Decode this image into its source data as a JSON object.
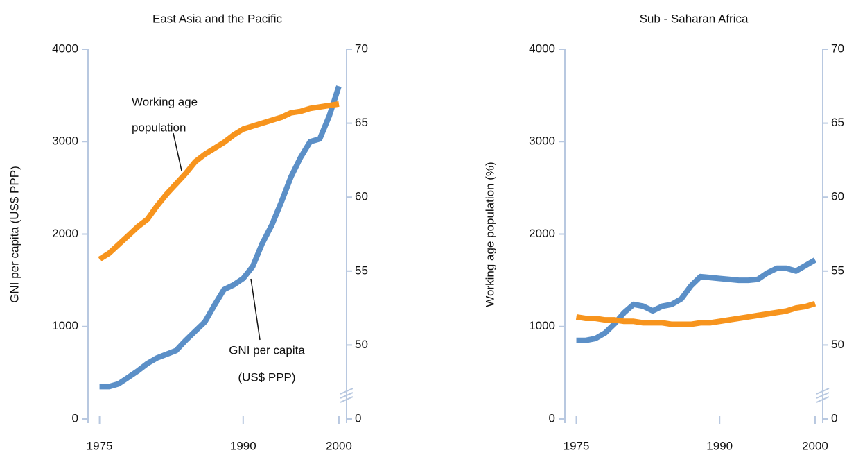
{
  "chart_data": [
    {
      "type": "line",
      "title": "East Asia and the Pacific",
      "y_label": "GNI per capita (US$ PPP)",
      "x": [
        1975,
        1976,
        1977,
        1978,
        1979,
        1980,
        1981,
        1982,
        1983,
        1984,
        1985,
        1986,
        1987,
        1988,
        1989,
        1990,
        1991,
        1992,
        1993,
        1994,
        1995,
        1996,
        1997,
        1998,
        1999,
        2000
      ],
      "xlim": [
        1973.8,
        2000.8
      ],
      "xticks": [
        1975,
        1990,
        2000
      ],
      "ylim": [
        0,
        4000
      ],
      "yticks": [
        0,
        1000,
        2000,
        3000,
        4000
      ],
      "y2lim": [
        45,
        70
      ],
      "y2ticks": [
        0,
        50,
        55,
        60,
        65,
        70
      ],
      "y2_broken": true,
      "series": [
        {
          "color": "#5b8fc7",
          "values": [
            350,
            350,
            380,
            450,
            520,
            600,
            660,
            700,
            740,
            850,
            950,
            1050,
            1230,
            1400,
            1450,
            1520,
            1650,
            1900,
            2100,
            2350,
            2620,
            2830,
            3000,
            3030,
            3280,
            3600
          ]
        },
        {
          "color": "#f7941d",
          "axis": "y2",
          "values": [
            55.8,
            56.2,
            56.8,
            57.4,
            58,
            58.5,
            59.4,
            60.2,
            60.9,
            61.6,
            62.4,
            62.9,
            63.3,
            63.7,
            64.2,
            64.6,
            64.8,
            65,
            65.2,
            65.4,
            65.7,
            65.8,
            66,
            66.1,
            66.2,
            66.3
          ]
        }
      ],
      "annotations": [
        [
          "Working age",
          "population"
        ],
        [
          "GNI per capita",
          "(US$ PPP)"
        ]
      ]
    },
    {
      "type": "line",
      "title": "Sub - Saharan Africa",
      "y_label": "Working age population (%)",
      "x": [
        1975,
        1976,
        1977,
        1978,
        1979,
        1980,
        1981,
        1982,
        1983,
        1984,
        1985,
        1986,
        1987,
        1988,
        1989,
        1990,
        1991,
        1992,
        1993,
        1994,
        1995,
        1996,
        1997,
        1998,
        1999,
        2000
      ],
      "xlim": [
        1973.8,
        2000.8
      ],
      "xticks": [
        1975,
        1990,
        2000
      ],
      "ylim": [
        0,
        4000
      ],
      "yticks": [
        0,
        1000,
        2000,
        3000,
        4000
      ],
      "y2lim": [
        45,
        70
      ],
      "y2ticks": [
        0,
        50,
        55,
        60,
        65,
        70
      ],
      "y2_broken": true,
      "series": [
        {
          "color": "#5b8fc7",
          "values": [
            850,
            850,
            870,
            930,
            1030,
            1150,
            1240,
            1220,
            1170,
            1220,
            1240,
            1300,
            1440,
            1540,
            1530,
            1520,
            1510,
            1500,
            1500,
            1510,
            1580,
            1630,
            1630,
            1600,
            1660,
            1720
          ]
        },
        {
          "color": "#f7941d",
          "axis": "y2",
          "values": [
            51.9,
            51.8,
            51.8,
            51.7,
            51.7,
            51.6,
            51.6,
            51.5,
            51.5,
            51.5,
            51.4,
            51.4,
            51.4,
            51.5,
            51.5,
            51.6,
            51.7,
            51.8,
            51.9,
            52,
            52.1,
            52.2,
            52.3,
            52.5,
            52.6,
            52.8
          ]
        }
      ]
    }
  ]
}
